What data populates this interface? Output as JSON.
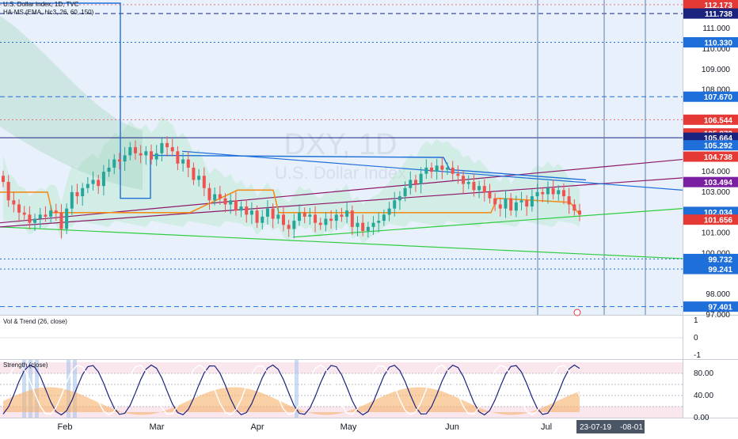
{
  "header": {
    "symbol_line": "U.S. Dollar Index, 1D, TVC",
    "indicator_line": "HA-MS (EMA, hlc3, 26, 60, 150)"
  },
  "watermark": {
    "ticker": "DXY, 1D",
    "name": "U.S. Dollar Index"
  },
  "pane2": {
    "title": "Vol & Trend (26, close)"
  },
  "pane3": {
    "title": "Strength (close)"
  },
  "colors": {
    "price_bg": "#e8f1fb",
    "up": "#26a69a",
    "down": "#ef5350",
    "blue_line": "#1e6fd9",
    "green_line": "#2ecc40",
    "purple_line": "#8e1a6b",
    "orange_line": "#f28e1c",
    "cloud_green": "#b9e6cc",
    "ribbon_blue": "#7fc4f0"
  },
  "chart_data": [
    {
      "type": "candlestick",
      "title": "DXY, 1D",
      "ylim": [
        97.0,
        112.4
      ],
      "y_ticks": [
        "111.000",
        "110.000",
        "109.000",
        "108.000",
        "104.000",
        "103.000",
        "101.000",
        "100.000",
        "98.000",
        "97.000"
      ],
      "x_ticks": [
        "Feb",
        "Mar",
        "Apr",
        "May",
        "Jun",
        "Jul"
      ],
      "price_labels": [
        {
          "value": 112.173,
          "text": "112.173",
          "color": "#e53935"
        },
        {
          "value": 111.738,
          "text": "111.738",
          "color": "#1a237e"
        },
        {
          "value": 110.33,
          "text": "110.330",
          "color": "#1e6fd9"
        },
        {
          "value": 107.67,
          "text": "107.670",
          "color": "#1e6fd9"
        },
        {
          "value": 106.544,
          "text": "106.544",
          "color": "#e53935"
        },
        {
          "value": 105.873,
          "text": "105.873",
          "color": "#e53935"
        },
        {
          "value": 105.664,
          "text": "105.664",
          "color": "#1a237e"
        },
        {
          "value": 105.292,
          "text": "105.292",
          "color": "#1e6fd9"
        },
        {
          "value": 104.738,
          "text": "104.738",
          "color": "#e53935"
        },
        {
          "value": 103.494,
          "text": "103.494",
          "color": "#7b1fa2"
        },
        {
          "value": 102.034,
          "text": "102.034",
          "color": "#1e6fd9"
        },
        {
          "value": 101.656,
          "text": "101.656",
          "color": "#e53935"
        },
        {
          "value": 99.732,
          "text": "99.732",
          "color": "#1e6fd9"
        },
        {
          "value": 99.241,
          "text": "99.241",
          "color": "#1e6fd9"
        },
        {
          "value": 97.401,
          "text": "97.401",
          "color": "#1e6fd9"
        }
      ],
      "close_series": [
        103.5,
        102.6,
        102.4,
        102.0,
        101.9,
        101.5,
        101.7,
        101.9,
        101.8,
        102.1,
        102.0,
        101.2,
        102.2,
        103.0,
        102.8,
        103.2,
        103.4,
        103.6,
        103.3,
        104.0,
        104.2,
        104.6,
        104.5,
        104.8,
        105.2,
        104.9,
        104.8,
        105.0,
        104.6,
        104.9,
        105.4,
        105.2,
        105.0,
        104.4,
        104.6,
        104.2,
        103.6,
        103.8,
        103.2,
        102.6,
        102.9,
        102.7,
        102.4,
        102.6,
        102.1,
        102.3,
        101.9,
        102.1,
        101.5,
        101.8,
        102.2,
        101.7,
        101.9,
        101.4,
        101.2,
        101.6,
        102.0,
        101.8,
        101.9,
        101.5,
        101.4,
        101.7,
        101.6,
        101.9,
        101.8,
        102.1,
        101.3,
        101.5,
        101.1,
        101.3,
        101.5,
        101.6,
        101.9,
        102.2,
        102.6,
        102.8,
        103.2,
        103.6,
        103.4,
        103.9,
        104.2,
        104.0,
        104.3,
        104.1,
        104.2,
        103.9,
        103.8,
        103.4,
        103.5,
        103.1,
        103.3,
        103.0,
        102.7,
        102.4,
        102.2,
        102.7,
        102.1,
        102.5,
        102.6,
        102.3,
        102.8,
        103.0,
        102.9,
        103.2,
        102.9,
        103.1,
        102.8,
        102.4,
        102.1,
        101.9
      ],
      "levels": [
        {
          "value": 112.173,
          "color": "#e57373",
          "style": "dotted"
        },
        {
          "value": 111.738,
          "color": "#1a237e",
          "style": "dashed"
        },
        {
          "value": 110.33,
          "color": "#1e6fd9",
          "style": "dotted"
        },
        {
          "value": 107.67,
          "color": "#1e6fd9",
          "style": "dashed"
        },
        {
          "value": 106.544,
          "color": "#e57373",
          "style": "dotted"
        },
        {
          "value": 105.664,
          "color": "#1a237e",
          "style": "solid"
        },
        {
          "value": 99.732,
          "color": "#1e6fd9",
          "style": "dotted"
        },
        {
          "value": 99.241,
          "color": "#1e6fd9",
          "style": "dotted"
        },
        {
          "value": 97.401,
          "color": "#1e6fd9",
          "style": "dashed"
        }
      ]
    },
    {
      "type": "line",
      "title": "Vol & Trend (26, close)",
      "ylim": [
        -1,
        1
      ],
      "y_ticks": [
        "1",
        "0",
        "-1"
      ]
    },
    {
      "type": "area",
      "title": "Strength (close)",
      "ylim": [
        0,
        100
      ],
      "y_ticks": [
        "80.00",
        "40.00",
        "0.00"
      ],
      "dates_label": "23-07-19",
      "dates_label2": "-08-01"
    }
  ]
}
